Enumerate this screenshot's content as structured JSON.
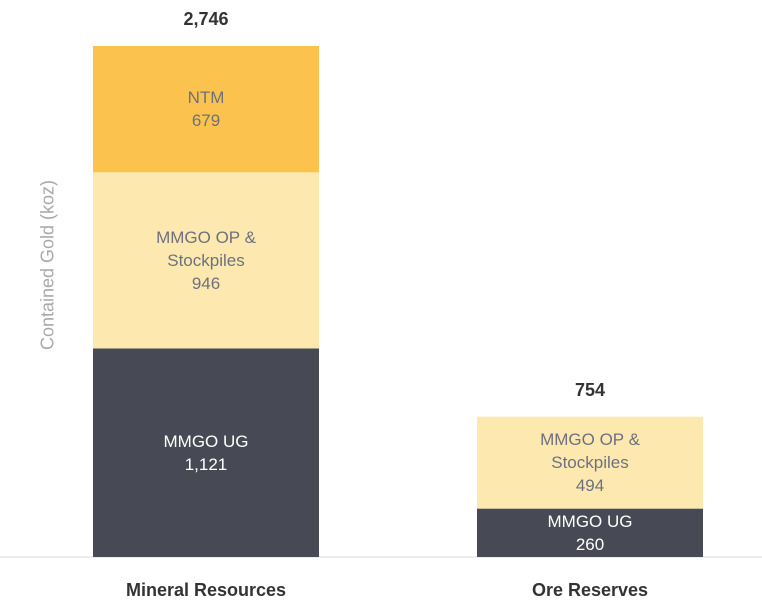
{
  "chart_data": {
    "type": "stacked_bar",
    "y_label": "Contained Gold (koz)",
    "categories": [
      "Mineral Resources",
      "Ore Reserves"
    ],
    "series": [
      {
        "name": "MMGO UG",
        "color": "#474a54",
        "text_color": "#ffffff",
        "values": [
          1121,
          260
        ],
        "value_labels": [
          "1,121",
          "260"
        ]
      },
      {
        "name": "MMGO OP & Stockpiles",
        "color": "#fde9b0",
        "text_color": "#6e7080",
        "values": [
          946,
          494
        ]
      },
      {
        "name": "NTM",
        "color": "#fbc34d",
        "text_color": "#6e7080",
        "values": [
          679,
          null
        ]
      }
    ],
    "totals": [
      2746,
      754
    ],
    "total_labels": [
      "2,746",
      "754"
    ]
  }
}
